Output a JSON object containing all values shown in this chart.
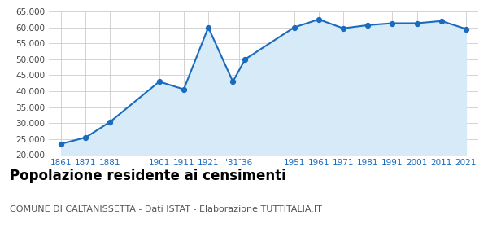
{
  "population": [
    23500,
    25500,
    30400,
    43000,
    40600,
    60000,
    43000,
    50000,
    60000,
    62500,
    59700,
    60700,
    61300,
    61300,
    62000,
    59500
  ],
  "tick_labels": [
    "1861",
    "1871",
    "1881",
    "1901",
    "1911",
    "1921",
    "'31‶36",
    "1951",
    "1961",
    "1971",
    "1981",
    "1991",
    "2001",
    "2011",
    "2021"
  ],
  "line_color": "#1a6bbf",
  "fill_color": "#d6eaf8",
  "marker_color": "#1a6bbf",
  "grid_color": "#cccccc",
  "background_color": "#ffffff",
  "title": "Popolazione residente ai censimenti",
  "subtitle": "COMUNE DI CALTANISSETTA - Dati ISTAT - Elaborazione TUTTITALIA.IT",
  "title_fontsize": 12,
  "subtitle_fontsize": 8,
  "ylim": [
    20000,
    65000
  ],
  "yticks": [
    20000,
    25000,
    30000,
    35000,
    40000,
    45000,
    50000,
    55000,
    60000,
    65000
  ]
}
